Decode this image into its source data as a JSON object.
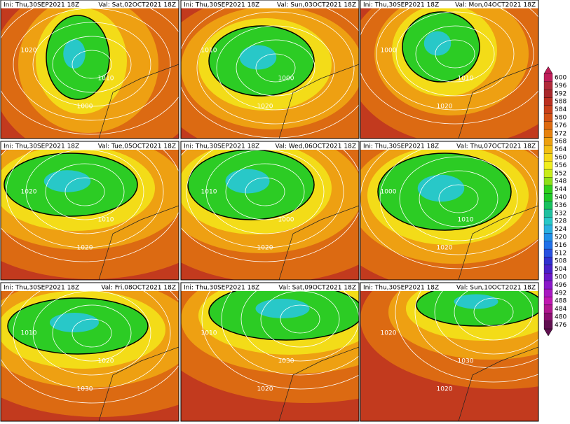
{
  "panels": [
    {
      "ini": "Ini: Thu,30SEP2021 18Z",
      "valid": "Val: Sat,02OCT2021 18Z",
      "labels": [
        "1020",
        "1010",
        "1000"
      ]
    },
    {
      "ini": "Ini: Thu,30SEP2021 18Z",
      "valid": "Val: Sun,03OCT2021 18Z",
      "labels": [
        "1010",
        "1000",
        "1020"
      ]
    },
    {
      "ini": "Ini: Thu,30SEP2021 18Z",
      "valid": "Val: Mon,04OCT2021 18Z",
      "labels": [
        "1000",
        "1010",
        "1020"
      ]
    },
    {
      "ini": "Ini: Thu,30SEP2021 18Z",
      "valid": "Val: Tue,05OCT2021 18Z",
      "labels": [
        "1020",
        "1010",
        "1020"
      ]
    },
    {
      "ini": "Ini: Thu,30SEP2021 18Z",
      "valid": "Val: Wed,06OCT2021 18Z",
      "labels": [
        "1010",
        "1000",
        "1020"
      ]
    },
    {
      "ini": "Ini: Thu,30SEP2021 18Z",
      "valid": "Val: Thu,07OCT2021 18Z",
      "labels": [
        "1000",
        "1010",
        "1020"
      ]
    },
    {
      "ini": "Ini: Thu,30SEP2021 18Z",
      "valid": "Val: Fri,08OCT2021 18Z",
      "labels": [
        "1010",
        "1020",
        "1030"
      ]
    },
    {
      "ini": "Ini: Thu,30SEP2021 18Z",
      "valid": "Val: Sat,09OCT2021 18Z",
      "labels": [
        "1010",
        "1030",
        "1020"
      ]
    },
    {
      "ini": "Ini: Thu,30SEP2021 18Z",
      "valid": "Val: Sun,10OCT2021 18Z",
      "labels": [
        "1020",
        "1030",
        "1020"
      ]
    }
  ],
  "colorbar": {
    "levels": [
      600,
      596,
      592,
      588,
      584,
      580,
      576,
      572,
      568,
      564,
      560,
      556,
      552,
      548,
      544,
      540,
      536,
      532,
      528,
      524,
      520,
      516,
      512,
      508,
      504,
      500,
      496,
      492,
      488,
      484,
      480,
      476
    ],
    "colors": [
      "#c01e5a",
      "#b02a3a",
      "#a8282a",
      "#bb3020",
      "#c8401a",
      "#d35216",
      "#dd6a10",
      "#e6820e",
      "#eda010",
      "#f2be14",
      "#f5d818",
      "#f0ee20",
      "#c8ec1a",
      "#8ee01a",
      "#30d01e",
      "#1ec828",
      "#18c060",
      "#20c0a0",
      "#28c8c8",
      "#2ab0e0",
      "#2090e8",
      "#2070e8",
      "#2850e0",
      "#3030d0",
      "#4820c8",
      "#6a18c8",
      "#8a18c8",
      "#a818c0",
      "#c018b0",
      "#b01890",
      "#8a1070",
      "#601050"
    ]
  }
}
